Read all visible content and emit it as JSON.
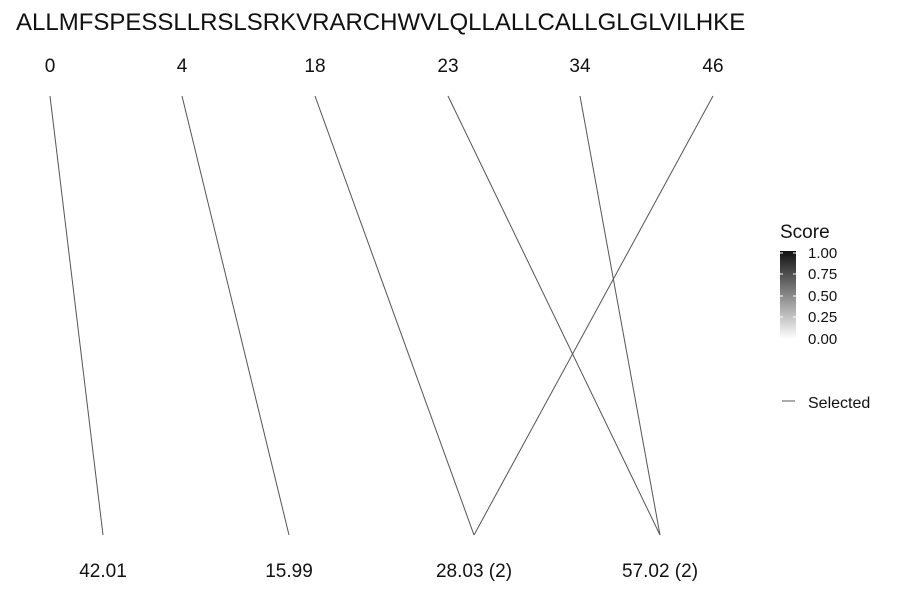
{
  "chart_data": {
    "type": "parallel-mapping",
    "sequence": "ALLMFSPESSLLRSLSRKVRARCHWVLQLLALLCALLGLGLVILHKE",
    "top_positions": [
      "0",
      "4",
      "18",
      "23",
      "34",
      "46"
    ],
    "bottom_values": [
      "42.01",
      "15.99",
      "28.03 (2)",
      "57.02 (2)"
    ],
    "links": [
      {
        "top": "0",
        "bottom": "42.01",
        "score": 1.0
      },
      {
        "top": "4",
        "bottom": "15.99",
        "score": 1.0
      },
      {
        "top": "18",
        "bottom": "28.03 (2)",
        "score": 1.0
      },
      {
        "top": "46",
        "bottom": "28.03 (2)",
        "score": 1.0
      },
      {
        "top": "23",
        "bottom": "57.02 (2)",
        "score": 1.0
      },
      {
        "top": "34",
        "bottom": "57.02 (2)",
        "score": 1.0
      }
    ],
    "legend": {
      "title": "Score",
      "ticks": [
        "1.00",
        "0.75",
        "0.50",
        "0.25",
        "0.00"
      ],
      "selected_label": "Selected",
      "position": "right"
    }
  },
  "colors": {
    "line": "#555555",
    "text": "#111111",
    "gradient_high": "#111111",
    "gradient_low": "#ffffff"
  }
}
